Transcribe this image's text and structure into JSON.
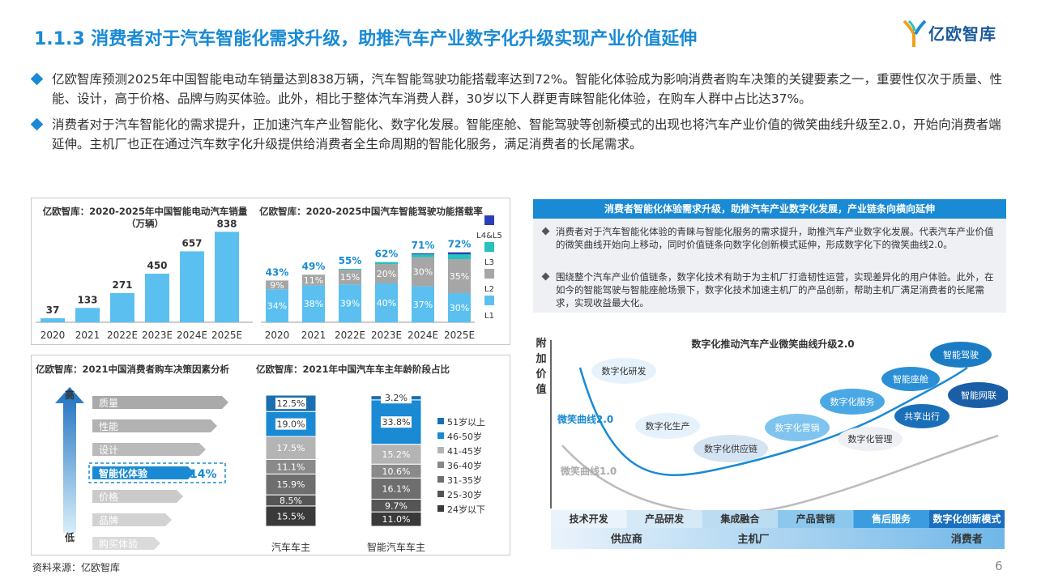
{
  "header": {
    "title": "1.1.3 消费者对于汽车智能化需求升级，助推汽车产业数字化升级实现产业价值延伸",
    "logo_text": "亿欧智库"
  },
  "bullets": [
    "亿欧智库预测2025年中国智能电动车销量达到838万辆，汽车智能驾驶功能搭载率达到72%。智能化体验成为影响消费者购车决策的关键要素之一，重要性仅次于质量、性能、设计，高于价格、品牌与购买体验。此外，相比于整体汽车消费人群，30岁以下人群更青睐智能化体验，在购车人群中占比达37%。",
    "消费者对于汽车智能化的需求提升，正加速汽车产业智能化、数字化发展。智能座舱、智能驾驶等创新模式的出现也将汽车产业价值的微笑曲线升级至2.0，开始向消费者端延伸。主机厂也正在通过汽车数字化升级提供给消费者全生命周期的智能化服务，满足消费者的长尾需求。"
  ],
  "chart_data": [
    {
      "type": "bar",
      "title": "亿欧智库：2020-2025年中国智能电动汽车销量（万辆）",
      "categories": [
        "2020",
        "2021",
        "2022E",
        "2023E",
        "2024E",
        "2025E"
      ],
      "values": [
        37,
        133,
        271,
        450,
        657,
        838
      ],
      "color": "#5bc0f0"
    },
    {
      "type": "bar",
      "title": "亿欧智库：2020-2025中国汽车智能驾驶功能搭载率",
      "categories": [
        "2020",
        "2021",
        "2022E",
        "2023E",
        "2024E",
        "2025E"
      ],
      "totals": [
        "43%",
        "49%",
        "55%",
        "62%",
        "71%",
        "72%"
      ],
      "series": [
        {
          "name": "L1",
          "values": [
            34,
            38,
            39,
            40,
            37,
            30
          ],
          "color": "#5bc0f0"
        },
        {
          "name": "L2",
          "values": [
            9,
            11,
            15,
            20,
            30,
            35
          ],
          "color": "#a6a6a6"
        },
        {
          "name": "L3",
          "values": [
            0,
            0,
            1,
            2,
            3,
            5
          ],
          "color": "#26c2c0"
        },
        {
          "name": "L4&L5",
          "values": [
            0,
            0,
            0,
            0,
            1,
            2
          ],
          "color": "#2a3fb5"
        }
      ],
      "labels": {
        "L1": [
          "34%",
          "38%",
          "39%",
          "40%",
          "37%",
          "30%"
        ],
        "L2": [
          "9%",
          "11%",
          "15%",
          "20%",
          "30%",
          "35%"
        ]
      }
    },
    {
      "type": "table",
      "title": "亿欧智库：2021中国消费者购车决策因素分析",
      "axis_high": "高",
      "axis_low": "低",
      "items": [
        "质量",
        "性能",
        "设计",
        "智能化体验",
        "价格",
        "品牌",
        "购买体验"
      ],
      "highlight_index": 3,
      "highlight_value": "14%"
    },
    {
      "type": "bar",
      "title": "亿欧智库：2021年中国汽车车主年龄阶段占比",
      "categories": [
        "汽车车主",
        "智能汽车车主"
      ],
      "series": [
        {
          "name": "24岁以下",
          "values": [
            15.5,
            11.0
          ],
          "color": "#3a3a3a"
        },
        {
          "name": "25-30岁",
          "values": [
            8.5,
            9.7
          ],
          "color": "#555555"
        },
        {
          "name": "31-35岁",
          "values": [
            15.9,
            16.1
          ],
          "color": "#6e6e6e"
        },
        {
          "name": "36-40岁",
          "values": [
            11.1,
            10.6
          ],
          "color": "#8a8a8a"
        },
        {
          "name": "41-45岁",
          "values": [
            17.5,
            15.2
          ],
          "color": "#b4b4b4"
        },
        {
          "name": "46-50岁",
          "values": [
            19.0,
            33.8
          ],
          "color": "#1a8ad4"
        },
        {
          "name": "51岁以上",
          "values": [
            12.5,
            3.2
          ],
          "color": "#1b6fb0"
        }
      ],
      "labels": [
        [
          "15.5%",
          "8.5%",
          "15.9%",
          "11.1%",
          "17.5%",
          "19.0%",
          "12.5%"
        ],
        [
          "11.0%",
          "9.7%",
          "16.1%",
          "10.6%",
          "15.2%",
          "33.8%",
          "3.2%"
        ]
      ],
      "legend_order": [
        "51岁以上",
        "46-50岁",
        "41-45岁",
        "36-40岁",
        "31-35岁",
        "25-30岁",
        "24岁以下"
      ]
    },
    {
      "type": "line",
      "title": "数字化推动汽车产业微笑曲线升级2.0",
      "ylabel": "附加价值",
      "curves": [
        "微笑曲线2.0",
        "微笑曲线1.0"
      ],
      "nodes": [
        "数字化研发",
        "数字化生产",
        "数字化供应链",
        "数字化营销",
        "数字化服务",
        "智能座舱",
        "智能驾驶",
        "共享出行",
        "智能网联",
        "数字化管理"
      ],
      "stages": [
        "技术开发",
        "产品研发",
        "集成融合",
        "产品营销",
        "售后服务",
        "数字化创新模式"
      ],
      "groups": [
        "供应商",
        "主机厂",
        "消费者"
      ]
    }
  ],
  "right_box": {
    "title": "消费者智能化体验需求升级，助推汽车产业数字化发展，产业链条向横向延伸",
    "points": [
      "消费者对于汽车智能化体验的青睐与智能化服务的需求提升，助推汽车产业数字化发展。代表汽车产业价值的微笑曲线开始向上移动，同时价值链条向数字化创新模式延伸，形成数字化下的微笑曲线2.0。",
      "围绕整个汽车产业价值链条，数字化技术有助于为主机厂打造韧性运营，实现差异化的用户体验。此外，在如今的智能驾驶与智能座舱场景下，数字化技术加速主机厂的产品创新，帮助主机厂满足消费者的长尾需求，实现收益最大化。"
    ]
  },
  "footer": {
    "source": "资料来源：亿欧智库",
    "page": "6"
  },
  "colors": {
    "accent": "#1a8ad4",
    "light_blue": "#5bc0f0",
    "grey": "#a6a6a6",
    "teal": "#26c2c0",
    "navy": "#2a3fb5"
  }
}
